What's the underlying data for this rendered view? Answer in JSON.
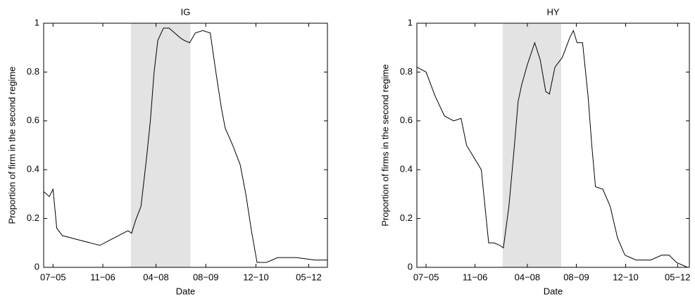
{
  "chart_data": [
    {
      "type": "line",
      "title": "IG",
      "x_label": "Date",
      "y_label": "Proportion of firm in the second regime",
      "xlim": [
        2005.25,
        2012.83
      ],
      "ylim": [
        0,
        1
      ],
      "xticks": [
        {
          "value": 2005.5,
          "label": "07−05"
        },
        {
          "value": 2006.83,
          "label": "11−06"
        },
        {
          "value": 2008.25,
          "label": "04−08"
        },
        {
          "value": 2009.58,
          "label": "08−09"
        },
        {
          "value": 2010.92,
          "label": "12−10"
        },
        {
          "value": 2012.33,
          "label": "05−12"
        }
      ],
      "yticks": [
        0,
        0.2,
        0.4,
        0.6,
        0.8,
        1
      ],
      "shade": [
        2007.58,
        2009.17
      ],
      "x": [
        2005.25,
        2005.4,
        2005.5,
        2005.6,
        2005.75,
        2006.0,
        2006.25,
        2006.5,
        2006.75,
        2007.0,
        2007.25,
        2007.5,
        2007.6,
        2007.7,
        2007.85,
        2008.0,
        2008.1,
        2008.2,
        2008.3,
        2008.45,
        2008.6,
        2008.75,
        2008.9,
        2009.0,
        2009.15,
        2009.3,
        2009.5,
        2009.7,
        2009.85,
        2010.0,
        2010.1,
        2010.3,
        2010.5,
        2010.65,
        2010.8,
        2010.95,
        2011.2,
        2011.5,
        2012.0,
        2012.5,
        2012.83
      ],
      "series": [
        {
          "name": "IG",
          "color": "#000000",
          "values": [
            0.31,
            0.29,
            0.32,
            0.16,
            0.13,
            0.12,
            0.11,
            0.1,
            0.09,
            0.11,
            0.13,
            0.15,
            0.14,
            0.19,
            0.25,
            0.45,
            0.6,
            0.8,
            0.93,
            0.98,
            0.98,
            0.96,
            0.94,
            0.93,
            0.92,
            0.96,
            0.97,
            0.96,
            0.8,
            0.65,
            0.57,
            0.5,
            0.42,
            0.3,
            0.15,
            0.02,
            0.02,
            0.04,
            0.04,
            0.03,
            0.03
          ]
        }
      ]
    },
    {
      "type": "line",
      "title": "HY",
      "x_label": "Date",
      "y_label": "Proportion of firms in the second regime",
      "xlim": [
        2005.25,
        2012.65
      ],
      "ylim": [
        0,
        1
      ],
      "xticks": [
        {
          "value": 2005.5,
          "label": "07−05"
        },
        {
          "value": 2006.83,
          "label": "11−06"
        },
        {
          "value": 2008.25,
          "label": "04−08"
        },
        {
          "value": 2009.58,
          "label": "08−09"
        },
        {
          "value": 2010.92,
          "label": "12−10"
        },
        {
          "value": 2012.33,
          "label": "05−12"
        }
      ],
      "yticks": [
        0,
        0.2,
        0.4,
        0.6,
        0.8,
        1
      ],
      "shade": [
        2007.58,
        2009.17
      ],
      "x": [
        2005.25,
        2005.5,
        2005.75,
        2006.0,
        2006.25,
        2006.45,
        2006.6,
        2006.8,
        2007.0,
        2007.1,
        2007.2,
        2007.35,
        2007.5,
        2007.6,
        2007.75,
        2007.9,
        2008.0,
        2008.1,
        2008.25,
        2008.45,
        2008.6,
        2008.75,
        2008.85,
        2009.0,
        2009.2,
        2009.4,
        2009.5,
        2009.6,
        2009.75,
        2009.9,
        2010.0,
        2010.1,
        2010.3,
        2010.5,
        2010.7,
        2010.9,
        2011.2,
        2011.6,
        2011.9,
        2012.1,
        2012.3,
        2012.6
      ],
      "series": [
        {
          "name": "HY",
          "color": "#000000",
          "values": [
            0.82,
            0.8,
            0.7,
            0.62,
            0.6,
            0.61,
            0.5,
            0.45,
            0.4,
            0.25,
            0.1,
            0.1,
            0.09,
            0.08,
            0.25,
            0.5,
            0.68,
            0.75,
            0.83,
            0.92,
            0.85,
            0.72,
            0.71,
            0.82,
            0.86,
            0.94,
            0.97,
            0.92,
            0.92,
            0.7,
            0.5,
            0.33,
            0.32,
            0.25,
            0.12,
            0.05,
            0.03,
            0.03,
            0.05,
            0.05,
            0.02,
            0.0
          ]
        }
      ]
    }
  ]
}
